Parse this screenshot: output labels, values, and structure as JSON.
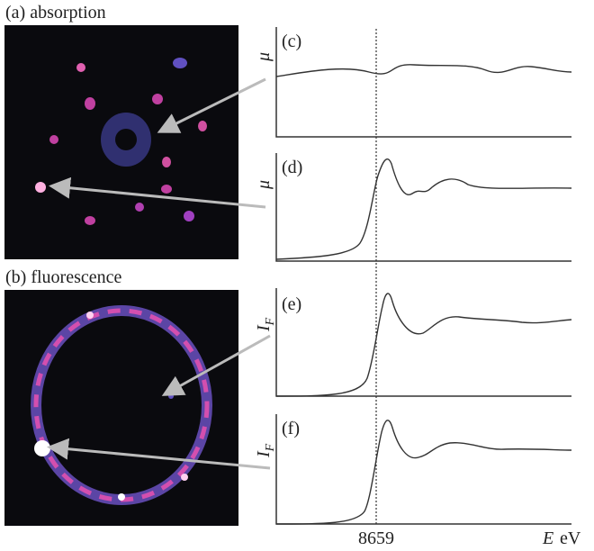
{
  "panel_a": {
    "label": "(a) absorption"
  },
  "panel_b": {
    "label": "(b) fluorescence"
  },
  "panels": [
    {
      "label": "(c)",
      "ylabel": {
        "symbol": "μ"
      }
    },
    {
      "label": "(d)",
      "ylabel": {
        "symbol": "μ"
      }
    },
    {
      "label": "(e)",
      "ylabel": {
        "symbol": "I",
        "subscript": "F"
      }
    },
    {
      "label": "(f)",
      "ylabel": {
        "symbol": "I",
        "subscript": "F"
      }
    }
  ],
  "x_axis": {
    "tick": "8659",
    "symbol": "E",
    "unit": "eV"
  }
}
